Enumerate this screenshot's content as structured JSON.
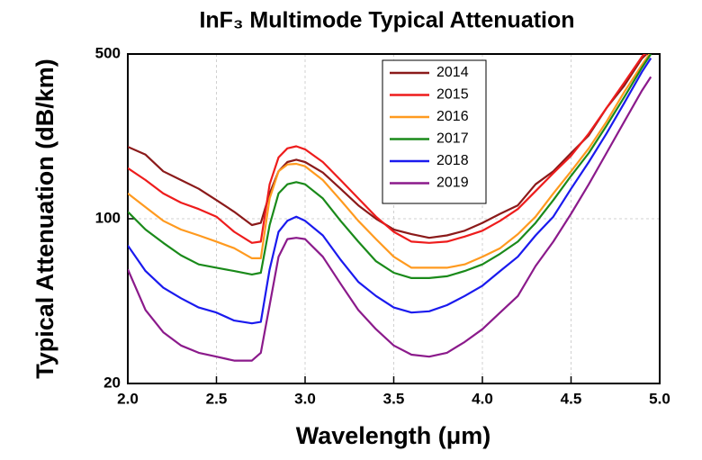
{
  "chart_data": {
    "type": "line",
    "title": "InF₃ Multimode Typical Attenuation",
    "x_label": "Wavelength (μm)",
    "y_label": "Typical Attenuation (dB/km)",
    "x": [
      2.0,
      2.1,
      2.2,
      2.3,
      2.4,
      2.5,
      2.6,
      2.7,
      2.75,
      2.8,
      2.85,
      2.9,
      2.95,
      3.0,
      3.1,
      3.2,
      3.3,
      3.4,
      3.5,
      3.6,
      3.7,
      3.8,
      3.9,
      4.0,
      4.1,
      4.2,
      4.3,
      4.4,
      4.5,
      4.6,
      4.7,
      4.8,
      4.9,
      4.95
    ],
    "series": [
      {
        "name": "2014",
        "color": "#8b1a1a",
        "values": [
          202,
          187,
          159,
          146,
          134,
          120,
          107,
          94,
          96,
          128,
          159,
          174,
          178,
          174,
          157,
          134,
          114,
          100,
          90,
          86,
          83,
          85,
          89,
          96,
          105,
          114,
          140,
          159,
          190,
          226,
          295,
          367,
          479,
          520
        ]
      },
      {
        "name": "2015",
        "color": "#ee1c1c",
        "values": [
          164,
          146,
          128,
          117,
          110,
          102,
          88,
          79,
          80,
          140,
          182,
          199,
          203,
          197,
          174,
          146,
          122,
          102,
          88,
          80,
          79,
          80,
          84,
          89,
          98,
          110,
          131,
          156,
          185,
          230,
          295,
          378,
          487,
          535
        ]
      },
      {
        "name": "2016",
        "color": "#ff9a1f",
        "values": [
          128,
          112,
          98,
          90,
          85,
          80,
          75,
          68,
          68,
          122,
          159,
          170,
          171,
          167,
          146,
          120,
          98,
          82,
          69,
          62,
          62,
          62,
          64,
          69,
          75,
          86,
          102,
          128,
          159,
          199,
          258,
          345,
          450,
          510
        ]
      },
      {
        "name": "2017",
        "color": "#1a8a1a",
        "values": [
          107,
          90,
          79,
          70,
          64,
          62,
          60,
          58,
          59,
          94,
          128,
          140,
          143,
          140,
          122,
          98,
          80,
          66,
          59,
          56,
          56,
          57,
          60,
          64,
          71,
          80,
          96,
          120,
          152,
          190,
          248,
          328,
          438,
          500
        ]
      },
      {
        "name": "2018",
        "color": "#1a1aee",
        "values": [
          77,
          60,
          51,
          46,
          42,
          40,
          37,
          36,
          36.5,
          61,
          88,
          98,
          102,
          98,
          85,
          67,
          54,
          47,
          42,
          40,
          40.5,
          43,
          47,
          52,
          60,
          69,
          85,
          102,
          134,
          174,
          230,
          310,
          420,
          480
        ]
      },
      {
        "name": "2019",
        "color": "#8b1a8b",
        "values": [
          61,
          41,
          33,
          29,
          27,
          26,
          25,
          25,
          27,
          43,
          69,
          82,
          83,
          82,
          69,
          53,
          41,
          34,
          29,
          26.5,
          26,
          27,
          30,
          34,
          40,
          47,
          63,
          80,
          105,
          140,
          190,
          258,
          350,
          400
        ]
      }
    ],
    "xlim": [
      2.0,
      5.0
    ],
    "xticks": [
      {
        "value": 2,
        "label": "2.0"
      },
      2.5,
      {
        "value": 3,
        "label": "3.0"
      },
      3.5,
      {
        "value": 4,
        "label": "4.0"
      },
      4.5,
      {
        "value": 5,
        "label": "5.0"
      }
    ],
    "ylim": [
      20,
      500
    ],
    "yticks": [
      20,
      100,
      500
    ],
    "y_log": true,
    "grid": true,
    "legend": "top"
  }
}
